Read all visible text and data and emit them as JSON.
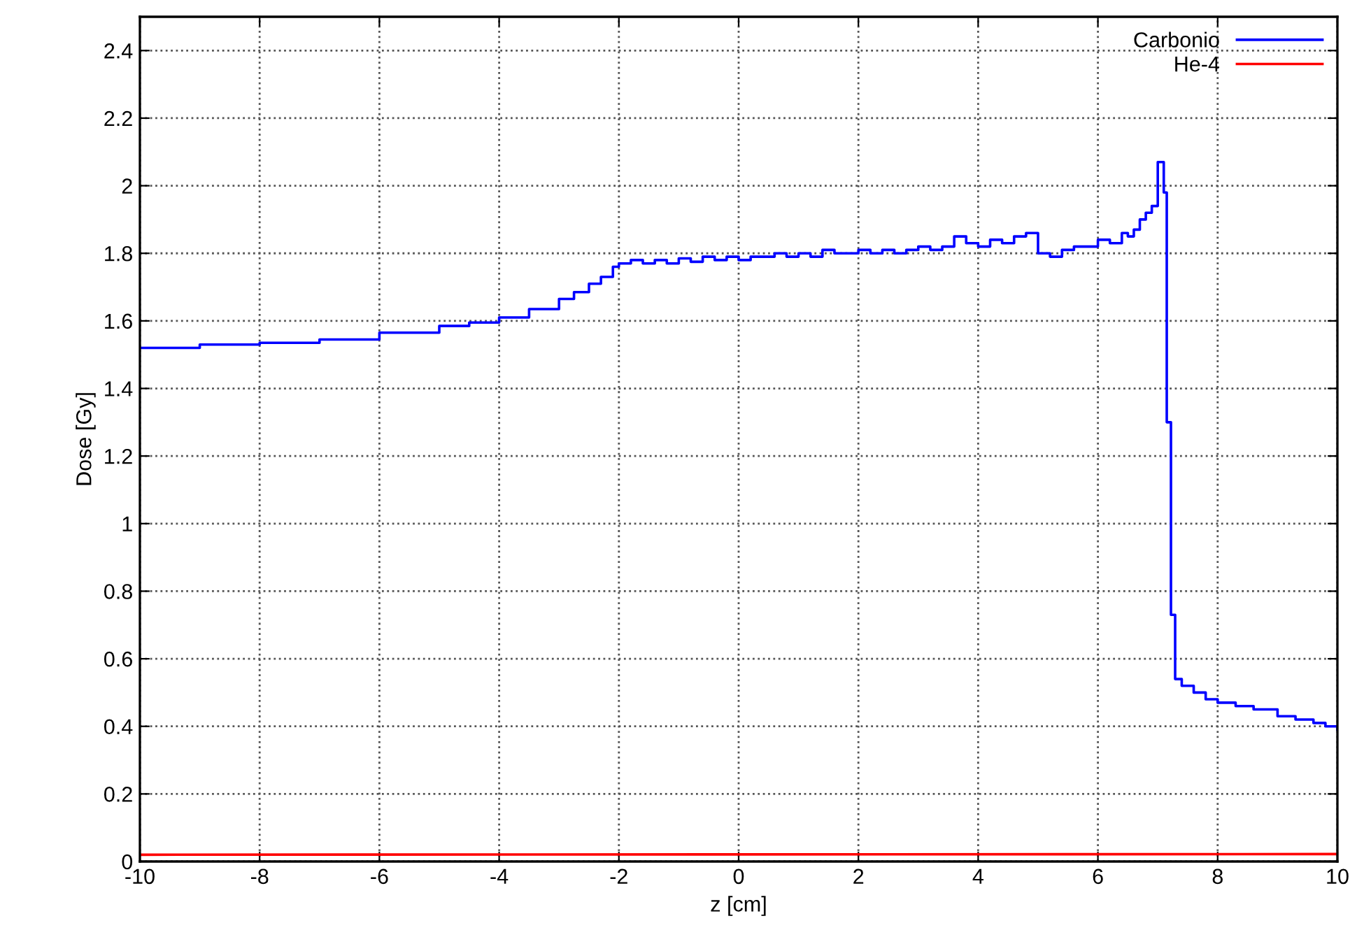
{
  "chart_data": {
    "type": "step",
    "xlabel": "z [cm]",
    "ylabel": "Dose [Gy]",
    "xlim": [
      -10,
      10
    ],
    "xticks": [
      -10,
      -8,
      -6,
      -4,
      -2,
      0,
      2,
      4,
      6,
      8,
      10
    ],
    "ylim": [
      0,
      2.5
    ],
    "yticks": [
      0,
      0.2,
      0.4,
      0.6,
      0.8,
      1,
      1.2,
      1.4,
      1.6,
      1.8,
      2,
      2.2,
      2.4
    ],
    "grid": true,
    "legend": "top right",
    "series": [
      {
        "name": "Carbonio",
        "color": "#0000ff",
        "x": [
          -10,
          -9,
          -8,
          -7,
          -6,
          -5,
          -4.5,
          -4,
          -3.5,
          -3,
          -2.75,
          -2.5,
          -2.3,
          -2.1,
          -2.0,
          -1.8,
          -1.6,
          -1.4,
          -1.2,
          -1.0,
          -0.8,
          -0.6,
          -0.4,
          -0.2,
          0,
          0.2,
          0.4,
          0.6,
          0.8,
          1.0,
          1.2,
          1.4,
          1.6,
          1.8,
          2.0,
          2.2,
          2.4,
          2.6,
          2.8,
          3.0,
          3.2,
          3.4,
          3.6,
          3.8,
          4.0,
          4.2,
          4.4,
          4.6,
          4.8,
          5.0,
          5.2,
          5.4,
          5.6,
          5.8,
          6.0,
          6.2,
          6.4,
          6.5,
          6.6,
          6.7,
          6.8,
          6.9,
          7.0,
          7.1,
          7.15,
          7.22,
          7.29,
          7.4,
          7.6,
          7.8,
          8.0,
          8.3,
          8.6,
          9.0,
          9.3,
          9.6,
          9.8,
          10
        ],
        "values": [
          1.52,
          1.53,
          1.535,
          1.545,
          1.565,
          1.585,
          1.595,
          1.61,
          1.635,
          1.665,
          1.685,
          1.71,
          1.73,
          1.76,
          1.77,
          1.78,
          1.77,
          1.78,
          1.77,
          1.785,
          1.775,
          1.79,
          1.78,
          1.79,
          1.78,
          1.79,
          1.79,
          1.8,
          1.79,
          1.8,
          1.79,
          1.81,
          1.8,
          1.8,
          1.81,
          1.8,
          1.81,
          1.8,
          1.81,
          1.82,
          1.81,
          1.82,
          1.85,
          1.83,
          1.82,
          1.84,
          1.83,
          1.85,
          1.86,
          1.8,
          1.79,
          1.81,
          1.82,
          1.82,
          1.84,
          1.83,
          1.86,
          1.85,
          1.87,
          1.9,
          1.92,
          1.94,
          2.07,
          1.98,
          1.3,
          0.73,
          0.54,
          0.52,
          0.5,
          0.48,
          0.47,
          0.46,
          0.45,
          0.43,
          0.42,
          0.41,
          0.4,
          0.39
        ]
      },
      {
        "name": "He-4",
        "color": "#ff0000",
        "type": "line",
        "x": [
          -10,
          10
        ],
        "values": [
          0.02,
          0.022
        ]
      }
    ]
  }
}
